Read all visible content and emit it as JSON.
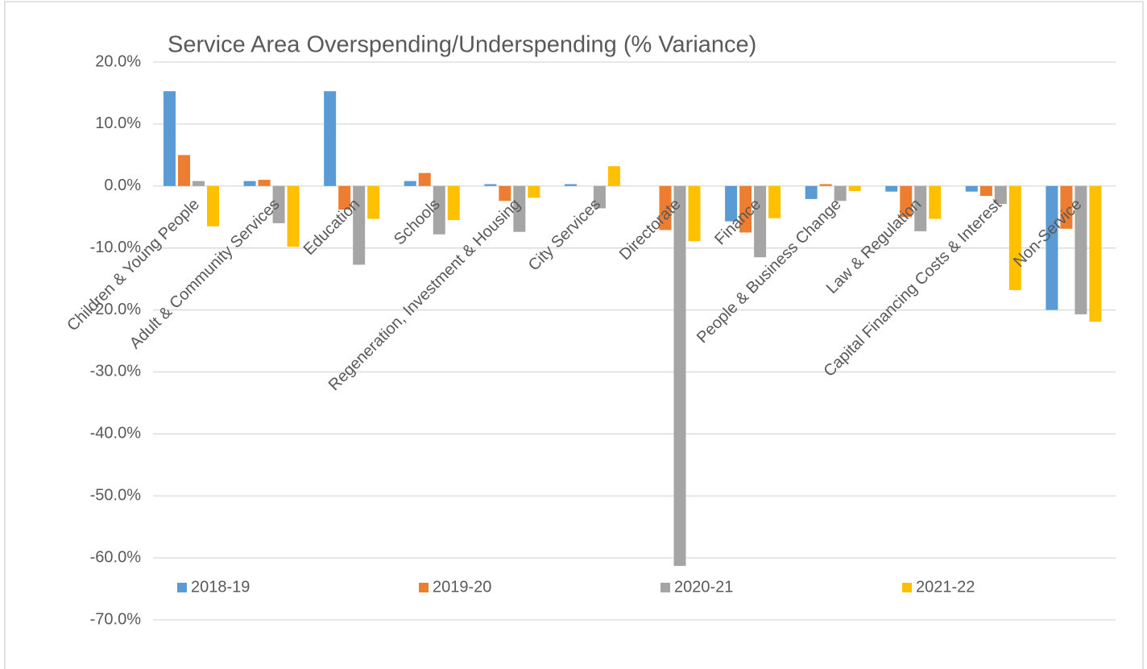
{
  "chart_data": {
    "type": "bar",
    "title": "Service Area Overspending/Underspending  (% Variance)",
    "categories": [
      "Children & Young People",
      "Adult & Community Services",
      "Education",
      "Schools",
      "Regeneration, Investment & Housing",
      "City Services",
      "Directorate",
      "Finance",
      "People & Business Change",
      "Law & Regulation",
      "Capital Financing Costs & Interest",
      "Non-Service"
    ],
    "series": [
      {
        "name": "2018-19",
        "color": "#5b9bd5",
        "values": [
          15.3,
          0.8,
          15.3,
          0.8,
          0.3,
          0.3,
          0,
          -5.7,
          -2.1,
          -0.9,
          -0.9,
          -20.0
        ]
      },
      {
        "name": "2019-20",
        "color": "#ed7d31",
        "values": [
          5.0,
          1.0,
          -3.8,
          2.1,
          -2.4,
          0,
          -7.1,
          -7.5,
          0.3,
          -5.0,
          -1.6,
          -6.9
        ]
      },
      {
        "name": "2020-21",
        "color": "#a5a5a5",
        "values": [
          0.8,
          -6.0,
          -12.7,
          -7.8,
          -7.4,
          -3.6,
          -61.3,
          -11.5,
          -2.4,
          -7.3,
          -2.9,
          -20.7
        ]
      },
      {
        "name": "2021-22",
        "color": "#ffc000",
        "values": [
          -6.5,
          -9.8,
          -5.3,
          -5.5,
          -1.9,
          3.2,
          -8.9,
          -5.2,
          -0.8,
          -5.3,
          -16.8,
          -21.9
        ]
      }
    ],
    "ylim": [
      -70,
      20
    ],
    "yticks": [
      {
        "value": -70,
        "label": "-70.0%"
      },
      {
        "value": -60,
        "label": "-60.0%"
      },
      {
        "value": -50,
        "label": "-50.0%"
      },
      {
        "value": -40,
        "label": "-40.0%"
      },
      {
        "value": -30,
        "label": "-30.0%"
      },
      {
        "value": -20,
        "label": "-20.0%"
      },
      {
        "value": -10,
        "label": "-10.0%"
      },
      {
        "value": 0,
        "label": "0.0%"
      },
      {
        "value": 10,
        "label": "10.0%"
      },
      {
        "value": 20,
        "label": "20.0%"
      }
    ],
    "grid": true,
    "legend": "bottom"
  }
}
